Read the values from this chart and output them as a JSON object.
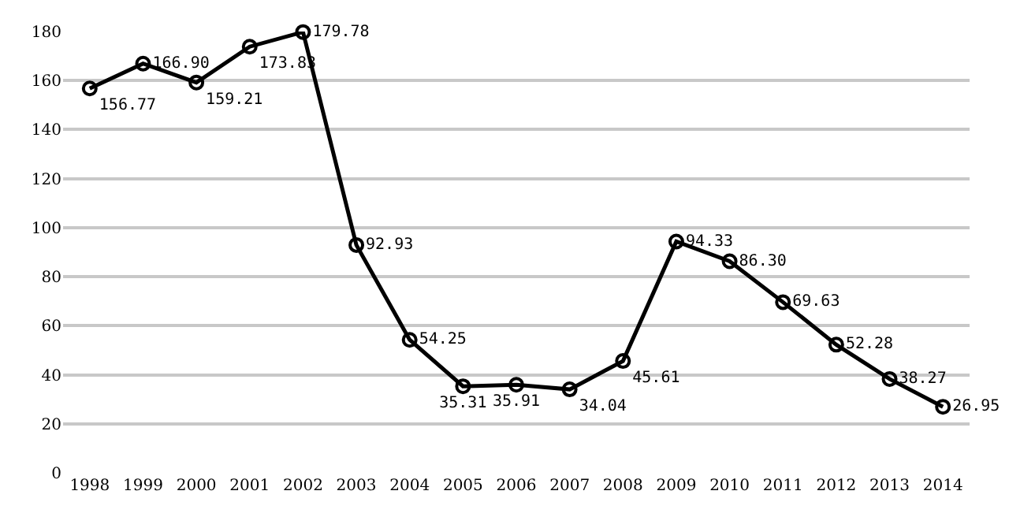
{
  "chart_data": {
    "type": "line",
    "categories": [
      "1998",
      "1999",
      "2000",
      "2001",
      "2002",
      "2003",
      "2004",
      "2005",
      "2006",
      "2007",
      "2008",
      "2009",
      "2010",
      "2011",
      "2012",
      "2013",
      "2014"
    ],
    "values": [
      156.77,
      166.9,
      159.21,
      173.83,
      179.78,
      92.93,
      54.25,
      35.31,
      35.91,
      34.04,
      45.61,
      94.33,
      86.3,
      69.63,
      52.28,
      38.27,
      26.95
    ],
    "value_labels": [
      "156.77",
      "166.90",
      "159.21",
      "173.83",
      "179.78",
      "92.93",
      "54.25",
      "35.31",
      "35.91",
      "34.04",
      "45.61",
      "94.33",
      "86.30",
      "69.63",
      "52.28",
      "38.27",
      "26.95"
    ],
    "color": "#000000",
    "ylim": [
      0,
      180
    ],
    "yticks": [
      0,
      20,
      40,
      60,
      80,
      100,
      120,
      140,
      160,
      180
    ],
    "grid": "y",
    "marker": "circle",
    "line_style": "solid"
  }
}
